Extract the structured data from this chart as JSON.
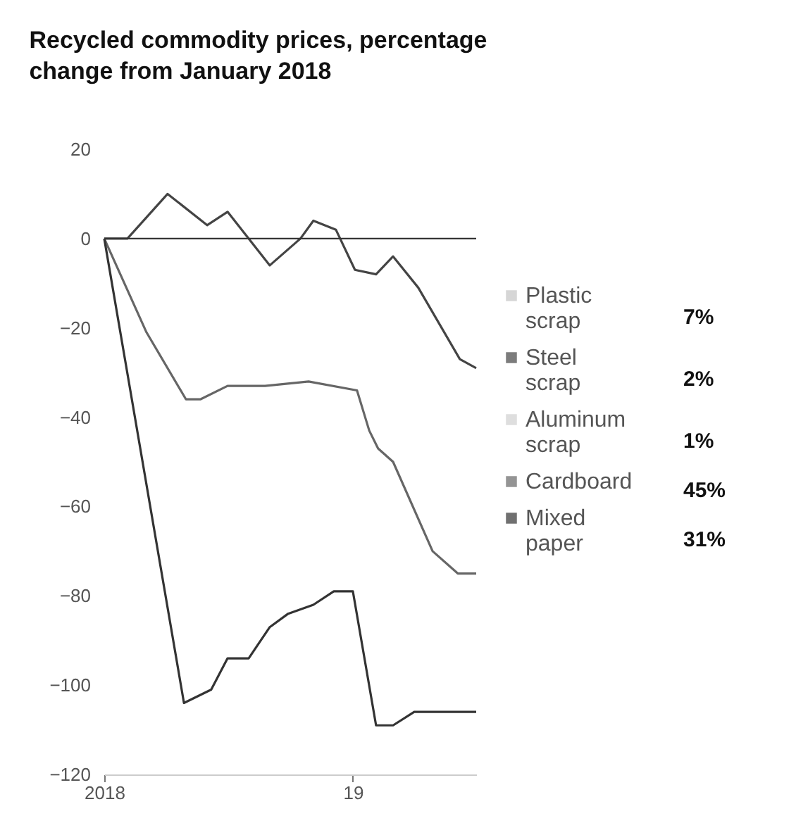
{
  "chart_data": {
    "type": "line",
    "title": "Recycled commodity prices, percentage change from January 2018",
    "series": [
      {
        "name": "Plastic scrap",
        "color": "#c4c4c4"
      },
      {
        "name": "Steel scrap",
        "color": "#444444",
        "x": [
          "2018-01-01",
          "2018-02-04",
          "2018-04-04",
          "2018-06-01",
          "2018-07-01",
          "2018-09-01",
          "2018-10-16",
          "2018-11-04",
          "2018-12-07",
          "2019-01-04",
          "2019-02-04",
          "2019-03-01",
          "2019-04-07",
          "2019-06-07",
          "2019-07-01"
        ],
        "values": [
          0,
          0,
          10,
          3,
          6,
          -6,
          0,
          4,
          2,
          -7,
          -8,
          -4,
          -11,
          -27,
          -29
        ]
      },
      {
        "name": "Aluminum scrap",
        "color": "#d0d0d0"
      },
      {
        "name": "Cardboard",
        "color": "#666666",
        "x": [
          "2018-01-01",
          "2018-03-04",
          "2018-05-01",
          "2018-05-22",
          "2018-07-01",
          "2018-08-25",
          "2018-10-28",
          "2019-01-07",
          "2019-01-25",
          "2019-02-07",
          "2019-03-01",
          "2019-04-28",
          "2019-06-04",
          "2019-07-01"
        ],
        "values": [
          0,
          -21,
          -36,
          -36,
          -33,
          -33,
          -32,
          -34,
          -43,
          -47,
          -50,
          -70,
          -75,
          -75
        ]
      },
      {
        "name": "Mixed paper",
        "color": "#333333",
        "x": [
          "2018-01-01",
          "2018-04-28",
          "2018-06-07",
          "2018-07-01",
          "2018-08-01",
          "2018-09-01",
          "2018-09-28",
          "2018-11-04",
          "2018-12-04",
          "2019-01-01",
          "2019-02-04",
          "2019-03-01",
          "2019-04-01",
          "2019-07-01"
        ],
        "values": [
          0,
          -104,
          -101,
          -94,
          -94,
          -87,
          -84,
          -82,
          -79,
          -79,
          -109,
          -109,
          -106,
          -106
        ]
      }
    ],
    "annotations": [
      "7%",
      "2%",
      "1%",
      "45%",
      "31%"
    ],
    "ylim": [
      -120,
      20
    ],
    "yticks": [
      -120,
      -100,
      -80,
      -60,
      -40,
      -20,
      0,
      20
    ],
    "xlim": [
      "2018-01-01",
      "2019-07-01"
    ],
    "xticks": [
      {
        "value": "2018-01-01",
        "label": "2018"
      },
      {
        "value": "2019-01-01",
        "label": "19"
      }
    ],
    "ref_lines": [
      {
        "axis": "y",
        "value": 0,
        "color": "#333333"
      }
    ],
    "grid": false,
    "legend": "right",
    "line_style": "solid",
    "marker": "none"
  }
}
